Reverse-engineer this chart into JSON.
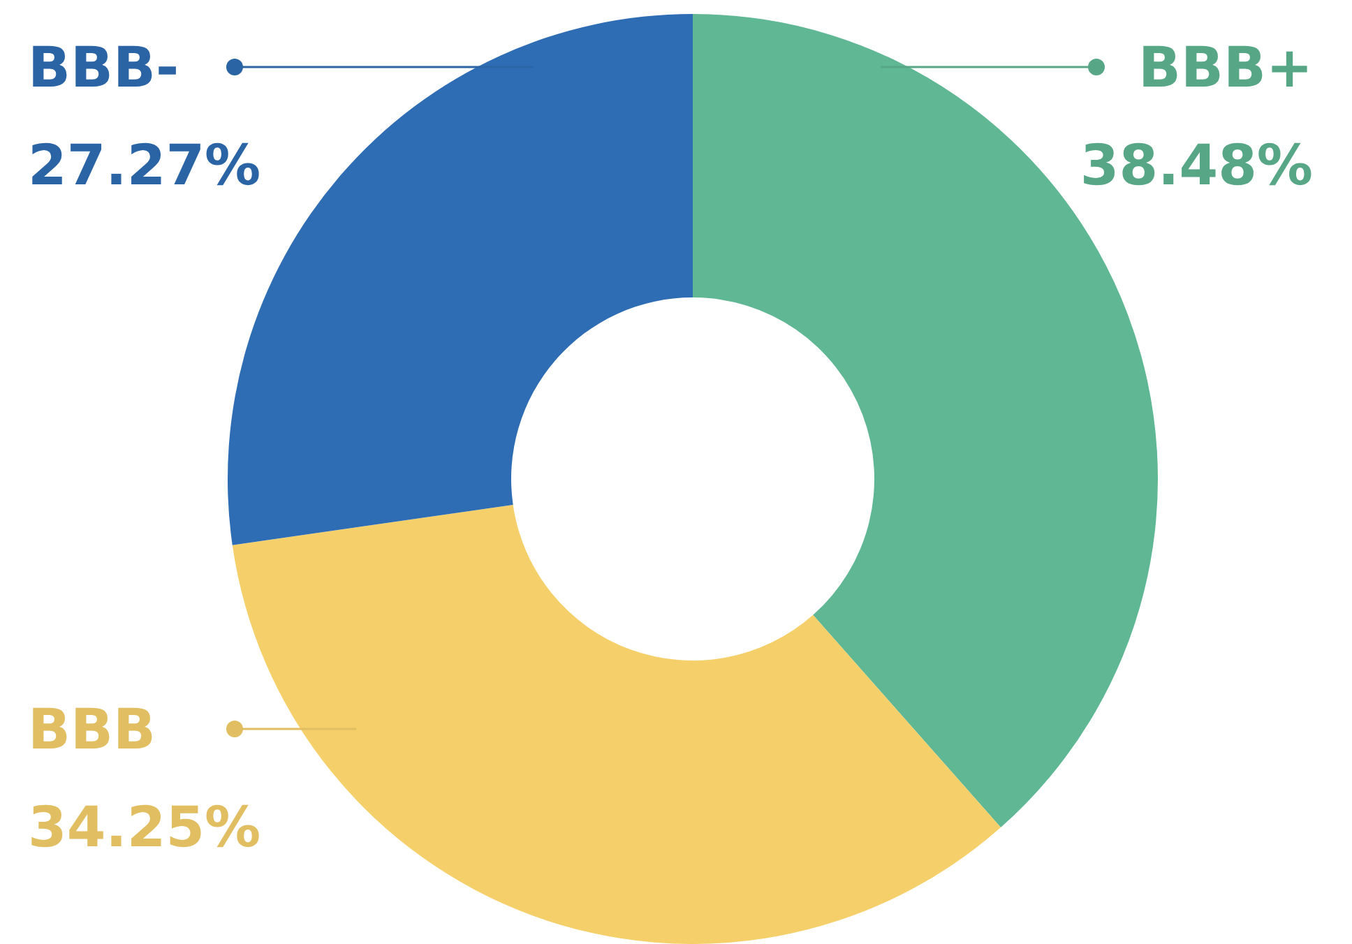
{
  "chart_data": {
    "type": "donut",
    "categories": [
      "BBB+",
      "BBB",
      "BBB-"
    ],
    "values": [
      38.48,
      34.25,
      27.27
    ],
    "colors": [
      "#5fb794",
      "#f5d06a",
      "#2e6db4"
    ],
    "value_labels": [
      "38.48%",
      "34.25%",
      "27.27%"
    ]
  }
}
